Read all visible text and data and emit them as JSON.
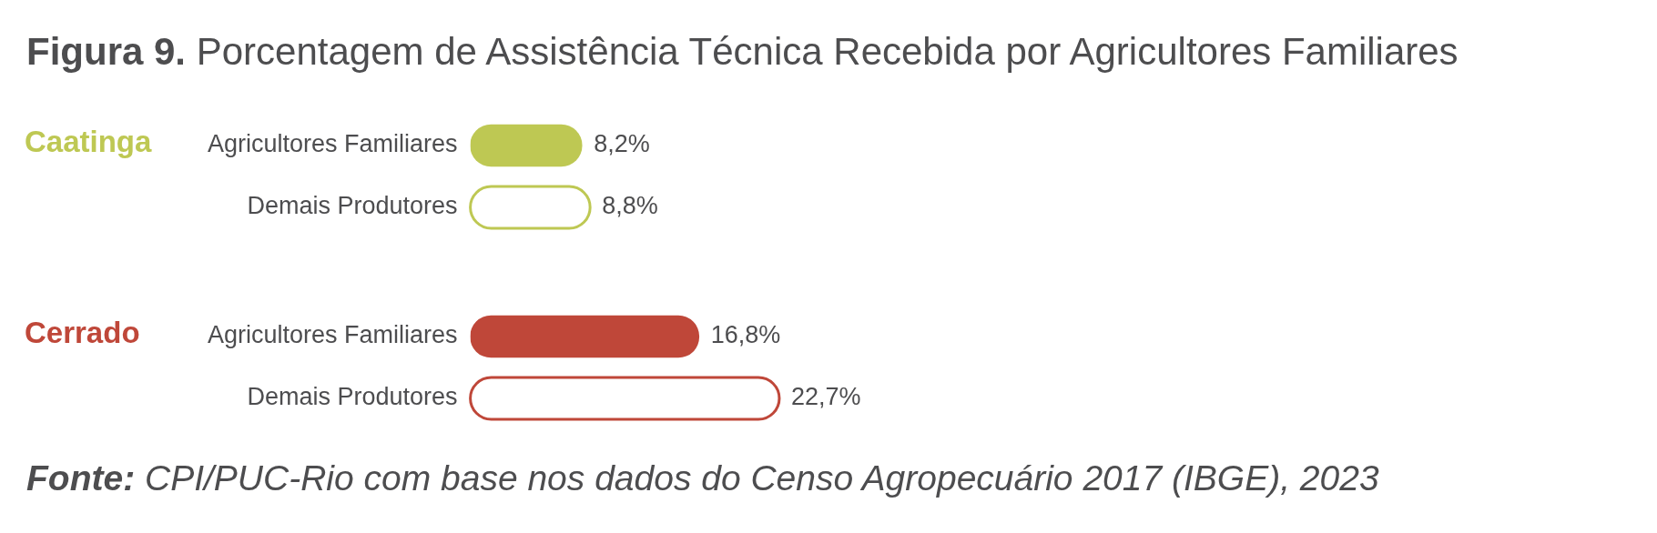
{
  "chart_data": {
    "type": "bar",
    "orientation": "horizontal",
    "title": "Figura 9. Porcentagem de Assistência Técnica Recebida por Agricultores Familiares",
    "categories": [
      "Agricultores Familiares",
      "Demais Produtores",
      "Agricultores Familiares",
      "Demais Produtores"
    ],
    "series": [
      {
        "name": "Caatinga",
        "color": "#bec853",
        "values": [
          8.2,
          8.8,
          null,
          null
        ],
        "value_labels": [
          "8,2%",
          "8,8%",
          null,
          null
        ]
      },
      {
        "name": "Cerrado",
        "color": "#bf4739",
        "values": [
          null,
          null,
          16.8,
          22.7
        ],
        "value_labels": [
          null,
          null,
          "16,8%",
          "22,7%"
        ]
      }
    ],
    "tick_labels": "y",
    "annotations": [
      "Fonte: CPI/PUC-Rio com base nos dados do Censo Agropecuário 2017 (IBGE), 2023"
    ]
  }
}
